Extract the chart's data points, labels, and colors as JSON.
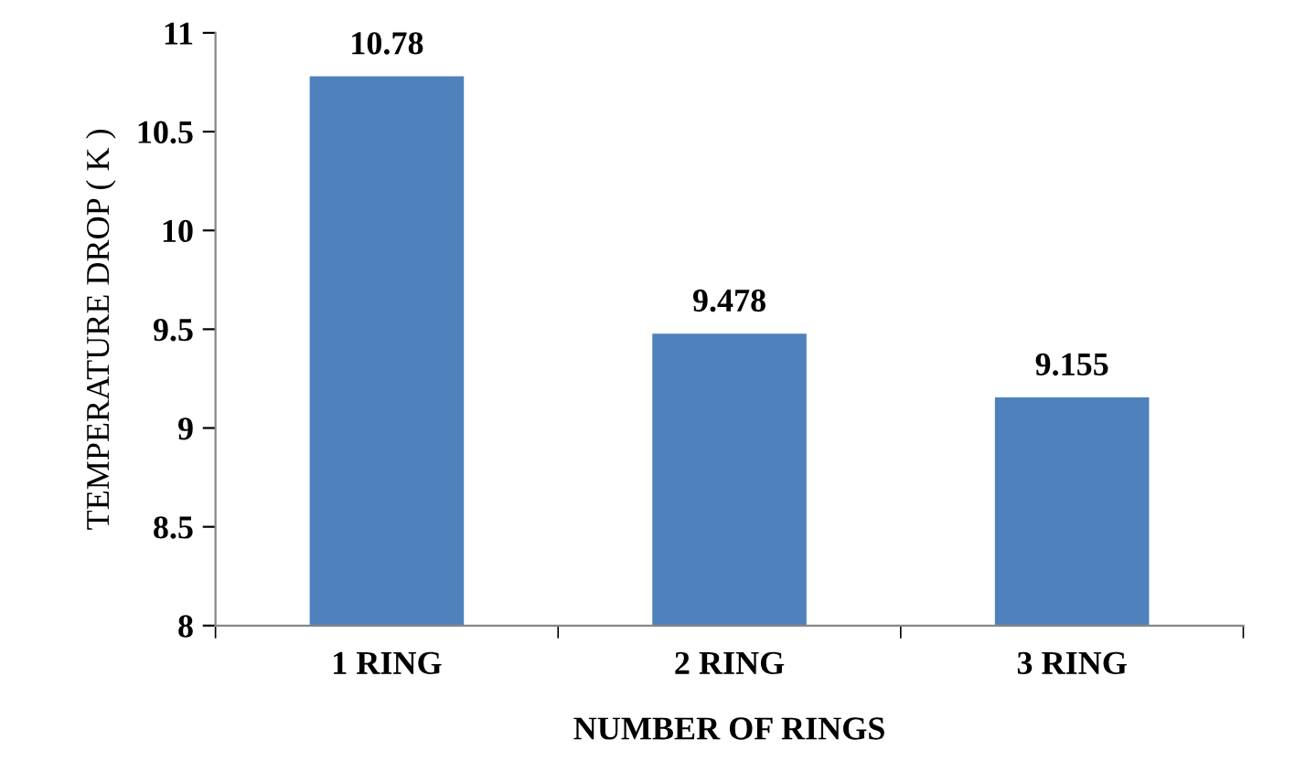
{
  "chart_data": {
    "type": "bar",
    "xlabel": "NUMBER OF RINGS",
    "ylabel": "TEMPERATURE DROP ( K )",
    "categories": [
      "1 RING",
      "2 RING",
      "3 RING"
    ],
    "values": [
      10.78,
      9.478,
      9.155
    ],
    "color": "#4f81bd",
    "ylim": [
      8,
      11
    ],
    "yticks": [
      8,
      8.5,
      9,
      9.5,
      10,
      10.5,
      11
    ],
    "grid": false,
    "data_labels": true
  }
}
